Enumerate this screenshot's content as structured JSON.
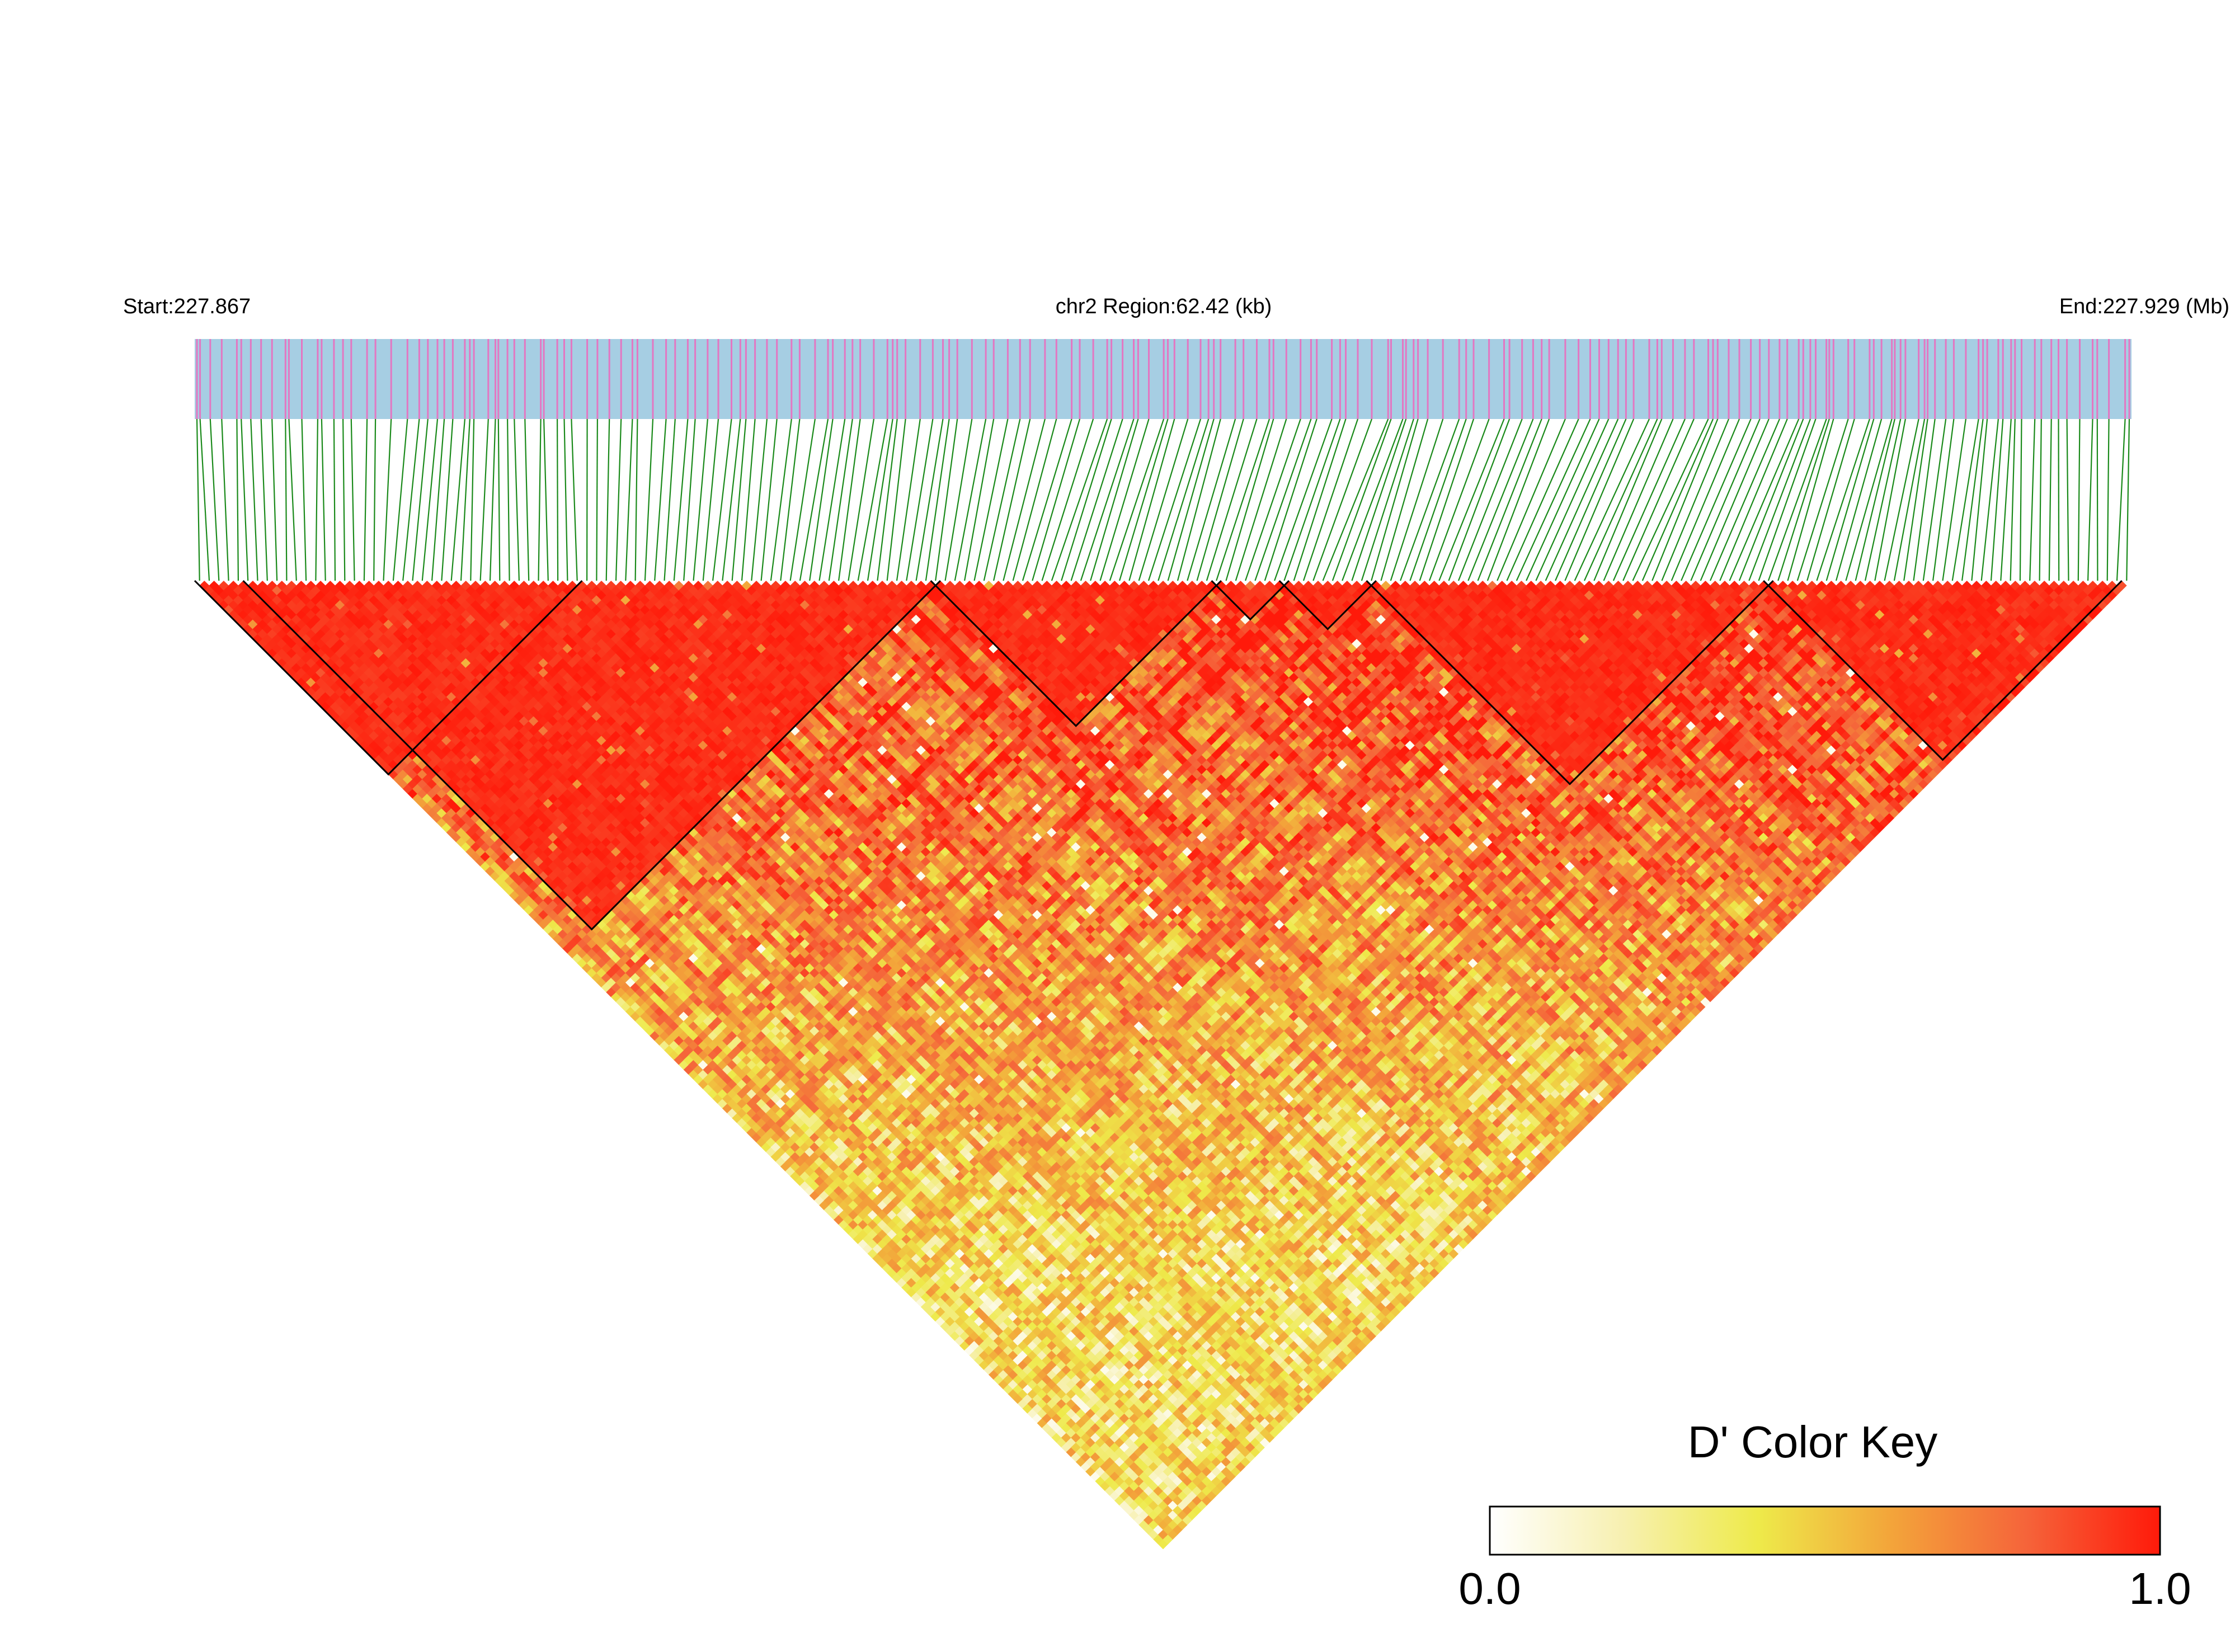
{
  "header": {
    "start_label": "Start:227.867",
    "region_label": "chr2 Region:62.42 (kb)",
    "end_label": "End:227.929 (Mb)"
  },
  "color_key": {
    "title": "D' Color Key",
    "min_label": "0.0",
    "max_label": "1.0",
    "stops": [
      "#ffffff",
      "#f7f0b0",
      "#eeea4a",
      "#f3a43a",
      "#f5643a",
      "#ff1a0a"
    ]
  },
  "colors": {
    "track_background": "#a6cee3",
    "snp_tick": "#e377c2",
    "connector": "#1a8a1a",
    "ld_high": "#ff1a0a",
    "ld_mid": "#f06a3a",
    "ld_low": "#f7e070",
    "block_outline": "#000000"
  },
  "chart_data": {
    "type": "heatmap",
    "description_of_axes": "",
    "chromosome": "chr2",
    "region_start_mb": 227.867,
    "region_end_mb": 227.929,
    "region_length_kb": 62.42,
    "snp_count": 200,
    "metric": "D'",
    "value_range": [
      0.0,
      1.0
    ],
    "ld_blocks": [
      {
        "first_snp": 1,
        "last_snp": 40
      },
      {
        "first_snp": 6,
        "last_snp": 77
      },
      {
        "first_snp": 77,
        "last_snp": 106
      },
      {
        "first_snp": 106,
        "last_snp": 113
      },
      {
        "first_snp": 113,
        "last_snp": 122
      },
      {
        "first_snp": 122,
        "last_snp": 163
      },
      {
        "first_snp": 163,
        "last_snp": 199
      }
    ]
  }
}
